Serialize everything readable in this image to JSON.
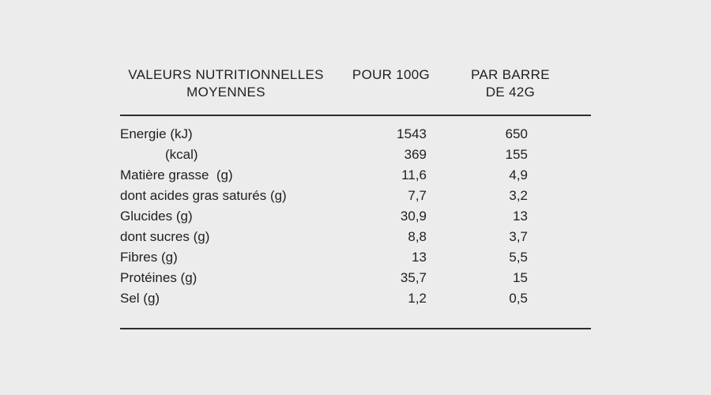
{
  "page": {
    "background_color": "#ececec",
    "text_color": "#1f1f1f",
    "rule_color": "#2d2d2d"
  },
  "table": {
    "header": {
      "label_line1": "VALEURS NUTRITIONNELLES",
      "label_line2": "MOYENNES",
      "per_100g": "POUR 100G",
      "per_bar_line1": "PAR BARRE",
      "per_bar_line2": "DE 42G"
    },
    "rows": [
      {
        "label": "Energie (kJ)",
        "per100": "1543",
        "bar": "650"
      },
      {
        "label": "(kcal)",
        "per100": "369",
        "bar": "155"
      },
      {
        "label": "Matière grasse  (g)",
        "per100": "11,6",
        "bar": "4,9"
      },
      {
        "label": "dont acides gras saturés (g)",
        "per100": "7,7",
        "bar": "3,2"
      },
      {
        "label": "Glucides (g)",
        "per100": "30,9",
        "bar": "13"
      },
      {
        "label": "dont sucres (g)",
        "per100": "8,8",
        "bar": "3,7"
      },
      {
        "label": "Fibres (g)",
        "per100": "13",
        "bar": "5,5"
      },
      {
        "label": "Protéines (g)",
        "per100": "35,7",
        "bar": "15"
      },
      {
        "label": "Sel (g)",
        "per100": "1,2",
        "bar": "0,5"
      }
    ]
  }
}
